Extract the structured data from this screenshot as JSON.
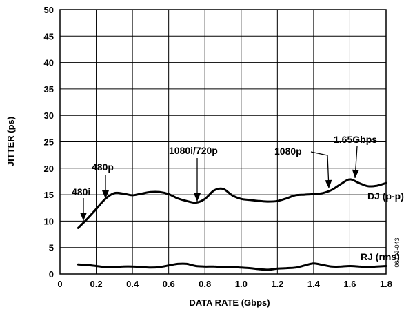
{
  "chart_data": {
    "type": "line",
    "xlabel": "DATA RATE (Gbps)",
    "ylabel": "JITTER (ps)",
    "xlim": [
      0,
      1.8
    ],
    "ylim": [
      0,
      50
    ],
    "x_ticks": [
      "0",
      "0.2",
      "0.4",
      "0.6",
      "0.8",
      "1.0",
      "1.2",
      "1.4",
      "1.6",
      "1.8"
    ],
    "y_ticks": [
      "0",
      "5",
      "10",
      "15",
      "20",
      "25",
      "30",
      "35",
      "40",
      "45",
      "50"
    ],
    "grid": true,
    "series": [
      {
        "name": "DJ (p-p)",
        "x": [
          0.1,
          0.15,
          0.2,
          0.25,
          0.3,
          0.35,
          0.4,
          0.45,
          0.5,
          0.55,
          0.6,
          0.65,
          0.7,
          0.75,
          0.8,
          0.85,
          0.9,
          0.95,
          1.0,
          1.05,
          1.1,
          1.15,
          1.2,
          1.25,
          1.3,
          1.35,
          1.4,
          1.45,
          1.5,
          1.55,
          1.6,
          1.65,
          1.7,
          1.75,
          1.8
        ],
        "y": [
          8.7,
          10.4,
          12.3,
          14.2,
          15.3,
          15.2,
          14.9,
          15.2,
          15.5,
          15.5,
          15.1,
          14.3,
          13.8,
          13.5,
          14.2,
          15.8,
          16.1,
          14.9,
          14.2,
          14.0,
          13.8,
          13.7,
          13.8,
          14.3,
          14.9,
          15.0,
          15.1,
          15.3,
          15.9,
          17.0,
          17.9,
          17.2,
          16.6,
          16.7,
          17.2
        ]
      },
      {
        "name": "RJ (rms)",
        "x": [
          0.1,
          0.15,
          0.2,
          0.25,
          0.3,
          0.35,
          0.4,
          0.45,
          0.5,
          0.55,
          0.6,
          0.65,
          0.7,
          0.75,
          0.8,
          0.85,
          0.9,
          0.95,
          1.0,
          1.05,
          1.1,
          1.15,
          1.2,
          1.25,
          1.3,
          1.35,
          1.4,
          1.45,
          1.5,
          1.55,
          1.6,
          1.65,
          1.7,
          1.75,
          1.8
        ],
        "y": [
          1.8,
          1.7,
          1.5,
          1.3,
          1.3,
          1.4,
          1.4,
          1.3,
          1.2,
          1.3,
          1.6,
          1.9,
          1.9,
          1.5,
          1.4,
          1.4,
          1.3,
          1.3,
          1.2,
          1.1,
          0.9,
          0.8,
          1.0,
          1.1,
          1.2,
          1.6,
          2.0,
          1.7,
          1.4,
          1.4,
          1.5,
          1.4,
          1.3,
          1.4,
          1.5
        ]
      }
    ],
    "annotations": [
      {
        "label": "480i",
        "x": 0.15
      },
      {
        "label": "480p",
        "x": 0.25
      },
      {
        "label": "1080i/720p",
        "x": 0.75
      },
      {
        "label": "1080p",
        "x": 1.485
      },
      {
        "label": "1.65Gbps",
        "x": 1.63
      }
    ],
    "series_labels": [
      "DJ (p-p)",
      "RJ (rms)"
    ],
    "figure_code": "06122-043"
  }
}
